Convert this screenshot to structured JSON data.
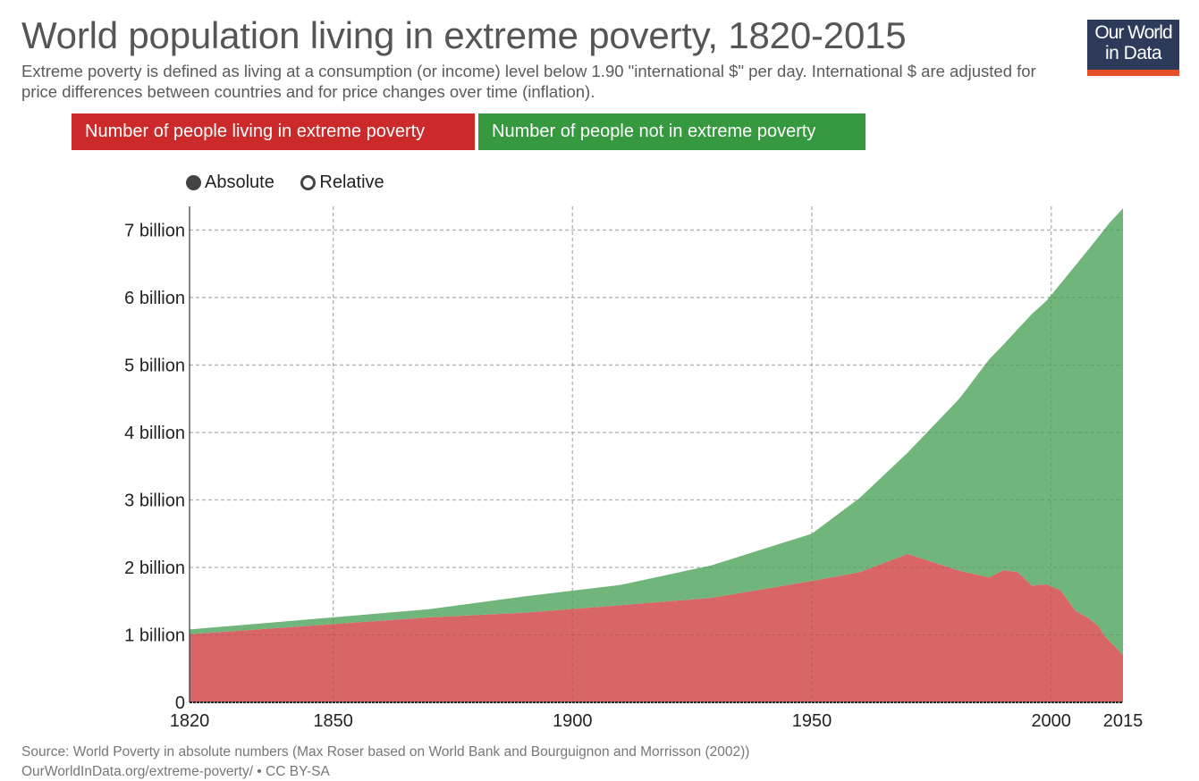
{
  "header": {
    "title": "World population living in extreme poverty, 1820-2015",
    "subtitle": "Extreme poverty is defined as living at a consumption (or income) level below 1.90 \"international $\" per day. International $ are adjusted for price differences between countries and for price changes over time (inflation).",
    "logo_line1": "Our World",
    "logo_line2": "in Data"
  },
  "legend": [
    {
      "label": "Number of people living in extreme poverty",
      "color": "#cc2a2a"
    },
    {
      "label": "Number of people not in extreme poverty",
      "color": "#36993f"
    }
  ],
  "mode_toggle": {
    "options": [
      {
        "label": "Absolute",
        "selected": true
      },
      {
        "label": "Relative",
        "selected": false
      }
    ]
  },
  "footer": {
    "source": "Source: World Poverty in absolute numbers (Max Roser based on World Bank and Bourguignon and Morrisson (2002))",
    "license": "OurWorldInData.org/extreme-poverty/ • CC BY-SA"
  },
  "chart_data": {
    "type": "area",
    "stacked": true,
    "title": "World population living in extreme poverty, 1820-2015",
    "xlabel": "",
    "ylabel": "",
    "xlim": [
      1820,
      2015
    ],
    "ylim": [
      0,
      7.35
    ],
    "y_unit": "billion",
    "grid": true,
    "x_ticks": [
      1820,
      1850,
      1900,
      1950,
      2000,
      2015
    ],
    "x_tick_labels": [
      "1820",
      "1850",
      "1900",
      "1950",
      "2000",
      "2015"
    ],
    "y_ticks": [
      0,
      1,
      2,
      3,
      4,
      5,
      6,
      7
    ],
    "y_tick_labels": [
      "0",
      "1 billion",
      "2 billion",
      "3 billion",
      "4 billion",
      "5 billion",
      "6 billion",
      "7 billion"
    ],
    "x": [
      1820,
      1850,
      1870,
      1890,
      1910,
      1929,
      1950,
      1960,
      1970,
      1980,
      1981,
      1984,
      1987,
      1990,
      1993,
      1996,
      1999,
      2002,
      2005,
      2008,
      2010,
      2011,
      2012,
      2013,
      2015
    ],
    "series": [
      {
        "name": "Number of people living in extreme poverty",
        "color": "#d96666",
        "values": [
          1.01,
          1.16,
          1.26,
          1.33,
          1.44,
          1.55,
          1.8,
          1.93,
          2.2,
          1.97,
          1.95,
          1.9,
          1.85,
          1.96,
          1.93,
          1.73,
          1.75,
          1.66,
          1.36,
          1.24,
          1.12,
          1.0,
          0.92,
          0.85,
          0.7
        ]
      },
      {
        "name": "Number of people not in extreme poverty",
        "color": "#70b67a",
        "values": [
          0.07,
          0.1,
          0.12,
          0.24,
          0.3,
          0.48,
          0.7,
          1.1,
          1.5,
          2.47,
          2.57,
          2.9,
          3.23,
          3.34,
          3.6,
          4.03,
          4.2,
          4.55,
          5.11,
          5.49,
          5.79,
          6.0,
          6.17,
          6.32,
          6.62
        ]
      }
    ],
    "legend_position": "top-left"
  }
}
